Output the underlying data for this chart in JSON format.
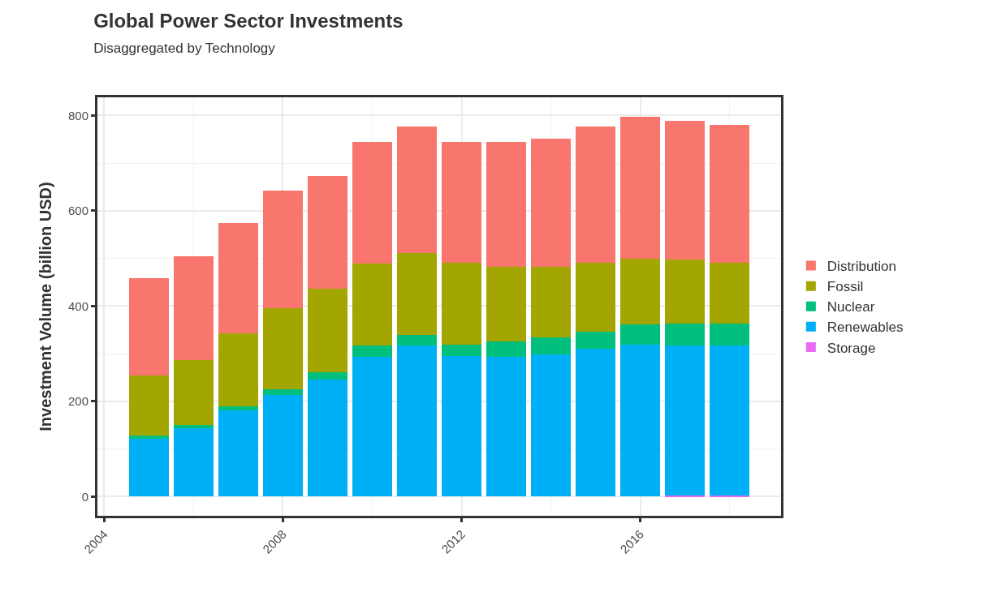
{
  "chart_data": {
    "type": "bar",
    "title": "Global Power Sector Investments",
    "subtitle": "Disaggregated by Technology",
    "ylabel": "Investment Volume (billion USD)",
    "x": [
      2005,
      2006,
      2007,
      2008,
      2009,
      2010,
      2011,
      2012,
      2013,
      2014,
      2015,
      2016,
      2017,
      2018
    ],
    "stacked": true,
    "series": [
      {
        "name": "Storage",
        "color": "#e76bf3",
        "values": [
          0,
          0,
          0,
          0,
          0,
          0,
          0,
          0,
          0,
          0,
          0,
          0,
          2,
          2
        ]
      },
      {
        "name": "Renewables",
        "color": "#00b0f6",
        "values": [
          121,
          144,
          182,
          214,
          246,
          294,
          317,
          296,
          293,
          299,
          310,
          319,
          315,
          315
        ]
      },
      {
        "name": "Nuclear",
        "color": "#00bf7d",
        "values": [
          8,
          6,
          8,
          12,
          15,
          23,
          23,
          23,
          32,
          35,
          36,
          42,
          47,
          47
        ]
      },
      {
        "name": "Fossil",
        "color": "#a3a500",
        "values": [
          126,
          137,
          153,
          169,
          175,
          172,
          172,
          172,
          158,
          149,
          145,
          139,
          133,
          127
        ]
      },
      {
        "name": "Distribution",
        "color": "#f8766d",
        "values": [
          204,
          217,
          231,
          248,
          237,
          256,
          265,
          254,
          262,
          269,
          286,
          298,
          292,
          290
        ]
      }
    ],
    "xlim": [
      2003.85,
      2019.15
    ],
    "xticks": [
      2004,
      2008,
      2012,
      2016
    ],
    "ylim": [
      -40,
      838
    ],
    "yticks": [
      0,
      200,
      400,
      600,
      800
    ],
    "grid": true,
    "legend": "right"
  }
}
